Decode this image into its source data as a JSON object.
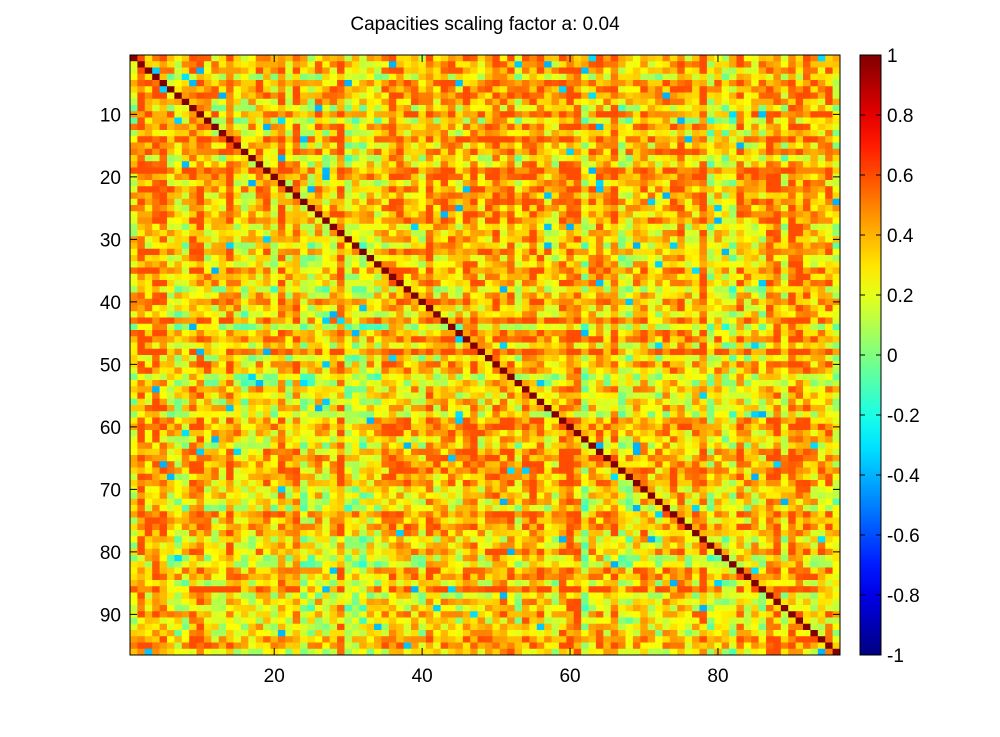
{
  "chart_data": {
    "type": "heatmap",
    "title": "Capacities scaling factor a: 0.04",
    "xlabel": "",
    "ylabel": "",
    "size": 96,
    "xlim": [
      0.5,
      96.5
    ],
    "ylim": [
      0.5,
      96.5
    ],
    "y_direction": "reverse",
    "x_ticks": [
      20,
      40,
      60,
      80
    ],
    "y_ticks": [
      10,
      20,
      30,
      40,
      50,
      60,
      70,
      80,
      90
    ],
    "colormap": "jet",
    "colorbar": {
      "range": [
        -1,
        1
      ],
      "ticks": [
        1,
        0.8,
        0.6,
        0.4,
        0.2,
        0,
        -0.2,
        -0.4,
        -0.6,
        -0.8,
        -1
      ],
      "tick_labels": [
        "1",
        "0.8",
        "0.6",
        "0.4",
        "0.2",
        "0",
        "-0.2",
        "-0.4",
        "-0.6",
        "-0.8",
        "-1"
      ]
    },
    "diagonal_value": 1.0,
    "off_diagonal_typical_range": [
      -0.4,
      0.6
    ],
    "off_diagonal_typical_value": 0.35
  }
}
